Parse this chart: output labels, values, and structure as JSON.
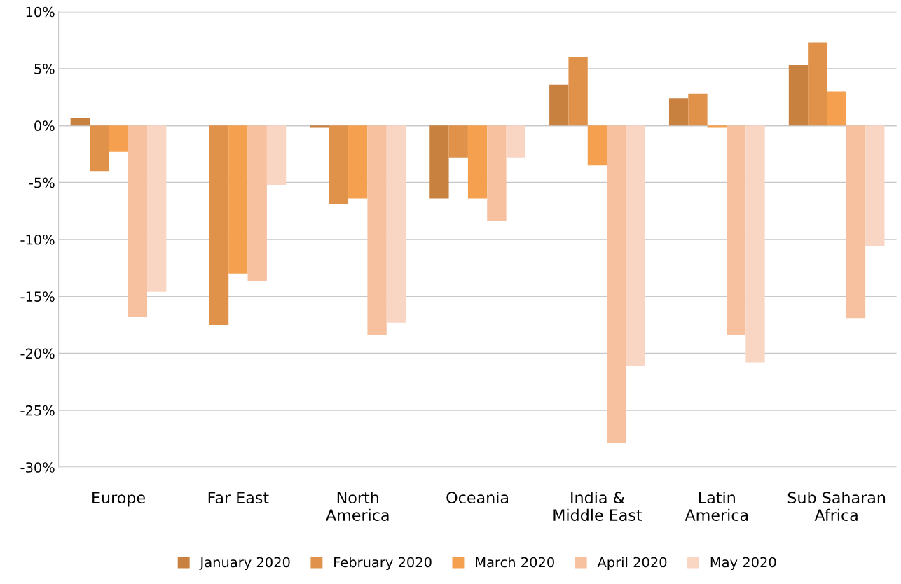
{
  "chart_data": {
    "type": "bar",
    "categories": [
      "Europe",
      "Far East",
      "North\nAmerica",
      "Oceania",
      "India &\nMiddle East",
      "Latin\nAmerica",
      "Sub Saharan\nAfrica"
    ],
    "series": [
      {
        "name": "January 2020",
        "color": "#c8813e",
        "values": [
          0.7,
          0,
          -0.2,
          -6.4,
          3.6,
          2.4,
          5.3
        ]
      },
      {
        "name": "February 2020",
        "color": "#e0924a",
        "values": [
          -4.0,
          -17.5,
          -6.9,
          -2.8,
          6.0,
          2.8,
          7.3
        ]
      },
      {
        "name": "March 2020",
        "color": "#f5a04e",
        "values": [
          -2.3,
          -13.0,
          -6.4,
          -6.4,
          -3.5,
          -0.2,
          3.0
        ]
      },
      {
        "name": "April 2020",
        "color": "#f7c1a0",
        "values": [
          -16.8,
          -13.7,
          -18.4,
          -8.4,
          -27.9,
          -18.4,
          -16.9
        ]
      },
      {
        "name": "May 2020",
        "color": "#f9d6c4",
        "values": [
          -14.6,
          -5.2,
          -17.3,
          -2.8,
          -21.1,
          -20.8,
          -10.6
        ]
      }
    ],
    "ylim": [
      -30,
      10
    ],
    "yticks": [
      {
        "value": -30,
        "label": "-30%"
      },
      {
        "value": -25,
        "label": "-25%"
      },
      {
        "value": -20,
        "label": "-20%"
      },
      {
        "value": -15,
        "label": "-15%"
      },
      {
        "value": -10,
        "label": "-10%"
      },
      {
        "value": -5,
        "label": "-5%"
      },
      {
        "value": 0,
        "label": "0%"
      },
      {
        "value": 5,
        "label": "5%"
      },
      {
        "value": 10,
        "label": "10%"
      }
    ],
    "grid": "y",
    "legend": "bottom"
  }
}
